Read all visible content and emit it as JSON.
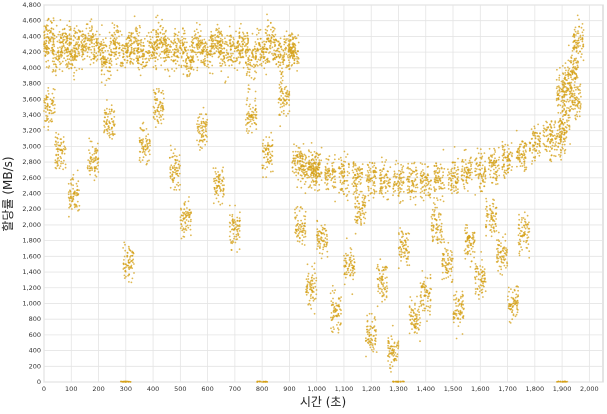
{
  "chart_data": {
    "type": "scatter",
    "xlabel": "시간 (초)",
    "ylabel": "할당률 (MB/s)",
    "xlim": [
      0,
      2050
    ],
    "ylim": [
      0,
      4800
    ],
    "xticks": [
      0,
      100,
      200,
      300,
      400,
      500,
      600,
      700,
      800,
      900,
      1000,
      1100,
      1200,
      1300,
      1400,
      1500,
      1600,
      1700,
      1800,
      1900,
      2000
    ],
    "xtick_labels": [
      "0",
      "100",
      "200",
      "300",
      "400",
      "500",
      "600",
      "700",
      "800",
      "900",
      "1,000",
      "1,100",
      "1,200",
      "1,300",
      "1,400",
      "1,500",
      "1,600",
      "1,700",
      "1,800",
      "1,900",
      "2,000"
    ],
    "yticks": [
      0,
      200,
      400,
      600,
      800,
      1000,
      1200,
      1400,
      1600,
      1800,
      2000,
      2200,
      2400,
      2600,
      2800,
      3000,
      3200,
      3400,
      3600,
      3800,
      4000,
      4200,
      4400,
      4600,
      4800
    ],
    "ytick_labels": [
      "0",
      "200",
      "400",
      "600",
      "800",
      "1,000",
      "1,200",
      "1,400",
      "1,600",
      "1,800",
      "2,000",
      "2,200",
      "2,400",
      "2,600",
      "2,800",
      "3,000",
      "3,200",
      "3,400",
      "3,600",
      "3,800",
      "4,000",
      "4,200",
      "4,400",
      "4,600",
      "4,800"
    ],
    "grid": true,
    "marker_color": "#d4a017",
    "series": [
      {
        "points_sample": [
          [
            0,
            4300
          ],
          [
            20,
            4350
          ],
          [
            50,
            4200
          ],
          [
            80,
            4320
          ],
          [
            100,
            4150
          ],
          [
            130,
            4280
          ],
          [
            160,
            4350
          ],
          [
            200,
            4250
          ],
          [
            230,
            4100
          ],
          [
            260,
            4300
          ],
          [
            300,
            4200
          ],
          [
            330,
            4320
          ],
          [
            360,
            4150
          ],
          [
            400,
            4250
          ],
          [
            430,
            4330
          ],
          [
            460,
            4200
          ],
          [
            500,
            4250
          ],
          [
            530,
            4120
          ],
          [
            560,
            4300
          ],
          [
            600,
            4200
          ],
          [
            630,
            4350
          ],
          [
            660,
            4150
          ],
          [
            700,
            4250
          ],
          [
            730,
            4300
          ],
          [
            760,
            4100
          ],
          [
            800,
            4200
          ],
          [
            830,
            4350
          ],
          [
            860,
            4150
          ],
          [
            900,
            4250
          ],
          [
            915,
            4200
          ],
          [
            20,
            3500
          ],
          [
            60,
            2950
          ],
          [
            110,
            2400
          ],
          [
            180,
            2800
          ],
          [
            240,
            3300
          ],
          [
            310,
            1550
          ],
          [
            370,
            3000
          ],
          [
            420,
            3500
          ],
          [
            480,
            2700
          ],
          [
            520,
            2100
          ],
          [
            580,
            3200
          ],
          [
            640,
            2500
          ],
          [
            700,
            1950
          ],
          [
            760,
            3400
          ],
          [
            820,
            2900
          ],
          [
            880,
            3600
          ],
          [
            930,
            2800
          ],
          [
            960,
            2750
          ],
          [
            990,
            2700
          ],
          [
            1000,
            2720
          ],
          [
            1050,
            2650
          ],
          [
            1100,
            2620
          ],
          [
            1150,
            2600
          ],
          [
            1200,
            2590
          ],
          [
            1250,
            2560
          ],
          [
            1300,
            2550
          ],
          [
            1350,
            2560
          ],
          [
            1400,
            2570
          ],
          [
            1450,
            2590
          ],
          [
            1500,
            2620
          ],
          [
            1550,
            2660
          ],
          [
            1600,
            2700
          ],
          [
            1650,
            2760
          ],
          [
            1700,
            2820
          ],
          [
            1750,
            2900
          ],
          [
            1800,
            3050
          ],
          [
            1850,
            3100
          ],
          [
            1890,
            3120
          ],
          [
            940,
            2000
          ],
          [
            980,
            1200
          ],
          [
            1020,
            1800
          ],
          [
            1070,
            900
          ],
          [
            1120,
            1500
          ],
          [
            1160,
            2200
          ],
          [
            1200,
            600
          ],
          [
            1240,
            1300
          ],
          [
            1280,
            400
          ],
          [
            1320,
            1700
          ],
          [
            1360,
            800
          ],
          [
            1400,
            1100
          ],
          [
            1440,
            2000
          ],
          [
            1480,
            1500
          ],
          [
            1520,
            900
          ],
          [
            1560,
            1800
          ],
          [
            1600,
            1300
          ],
          [
            1640,
            2100
          ],
          [
            1680,
            1600
          ],
          [
            1720,
            1000
          ],
          [
            1760,
            1900
          ],
          [
            1900,
            3700
          ],
          [
            1920,
            3800
          ],
          [
            1940,
            4000
          ],
          [
            1960,
            4350
          ],
          [
            1910,
            3300
          ],
          [
            1950,
            3600
          ],
          [
            300,
            0
          ],
          [
            800,
            0
          ],
          [
            1300,
            0
          ],
          [
            1900,
            0
          ]
        ]
      }
    ]
  }
}
